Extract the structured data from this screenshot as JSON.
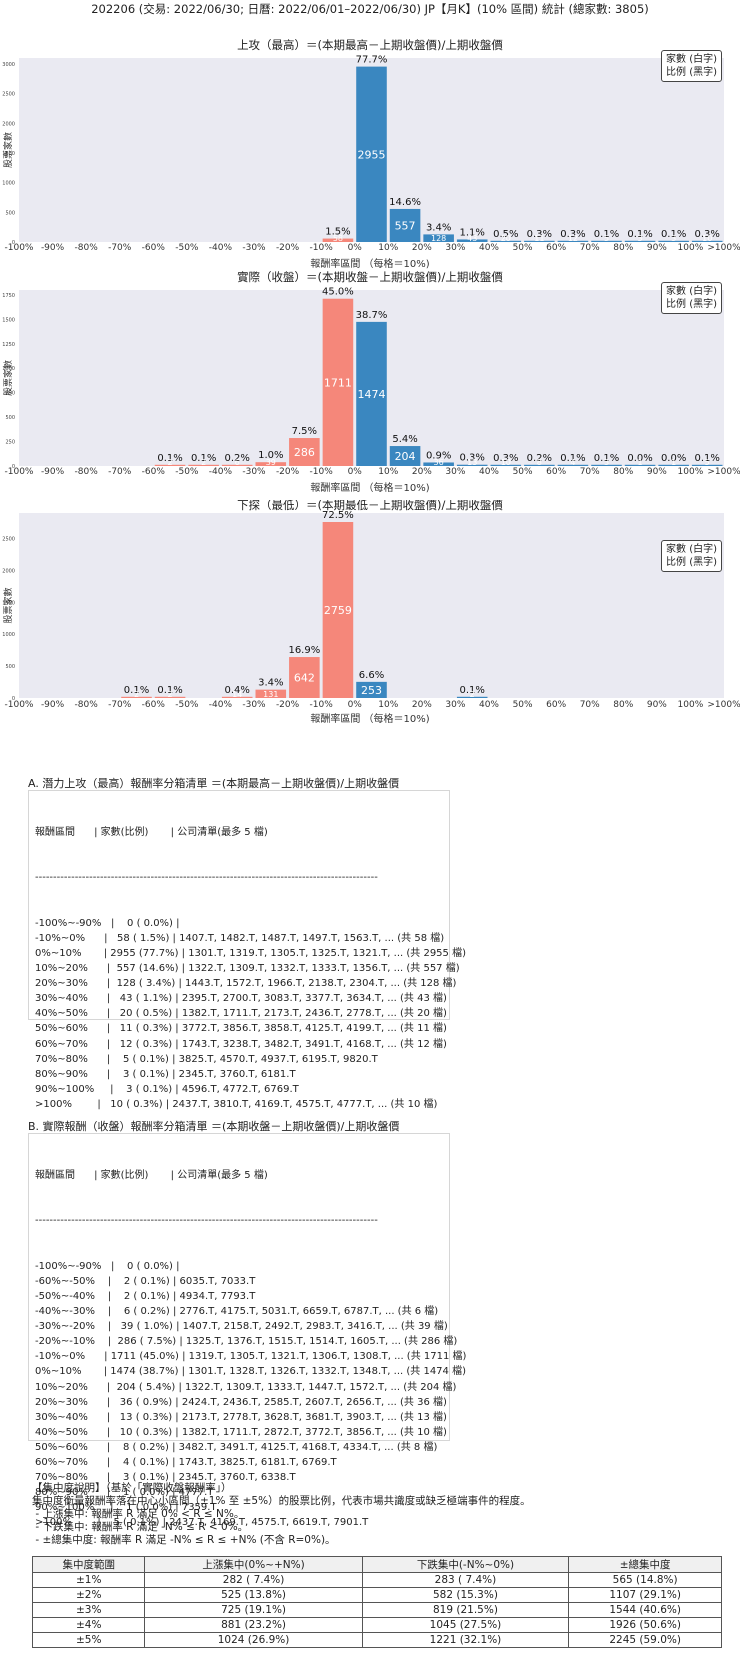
{
  "page_title": "202206 (交易: 2022/06/30; 日曆: 2022/06/01–2022/06/30) JP【月K】(10% 區間) 統計 (總家數: 3805)",
  "legend": {
    "line1": "家數 (白字)",
    "line2": "比例 (黑字)"
  },
  "colors": {
    "positive": "#3a87c0",
    "negative": "#f5877a",
    "panel": "#eaeaf2"
  },
  "chart_data": [
    {
      "type": "bar",
      "title": "上攻（最高）＝(本期最高－上期收盤價)/上期收盤價",
      "xlabel": "報酬率區間 （每格＝10%)",
      "ylabel": "股票家數",
      "x_ticks": [
        "-100%",
        "-90%",
        "-80%",
        "-70%",
        "-60%",
        "-50%",
        "-40%",
        "-30%",
        "-20%",
        "-10%",
        "0%",
        "10%",
        "20%",
        "30%",
        "40%",
        "50%",
        "60%",
        "70%",
        "80%",
        "90%",
        "100%",
        ">100%"
      ],
      "y_ticks": [
        0,
        500,
        1000,
        1500,
        2000,
        2500,
        3000
      ],
      "ylim": [
        0,
        3100
      ],
      "categories": [
        "-100%~-90%",
        "-90%~-80%",
        "-80%~-70%",
        "-70%~-60%",
        "-60%~-50%",
        "-50%~-40%",
        "-40%~-30%",
        "-30%~-20%",
        "-20%~-10%",
        "-10%~0%",
        "0%~10%",
        "10%~20%",
        "20%~30%",
        "30%~40%",
        "40%~50%",
        "50%~60%",
        "60%~70%",
        "70%~80%",
        "80%~90%",
        "90%~100%",
        ">100%"
      ],
      "values": [
        0,
        null,
        null,
        null,
        null,
        null,
        null,
        null,
        null,
        58,
        2955,
        557,
        128,
        43,
        20,
        11,
        12,
        5,
        3,
        3,
        10
      ],
      "pct_labels": [
        "",
        "",
        "",
        "",
        "",
        "",
        "",
        "",
        "",
        "1.5%",
        "77.7%",
        "14.6%",
        "3.4%",
        "1.1%",
        "0.5%",
        "0.3%",
        "0.3%",
        "0.1%",
        "0.1%",
        "0.1%",
        "0.3%"
      ],
      "count_labels": [
        "",
        "",
        "",
        "",
        "",
        "",
        "",
        "",
        "",
        "58",
        "2955",
        "557",
        "128",
        "43",
        "20",
        "11",
        "12",
        "5",
        "3",
        "3",
        "10"
      ]
    },
    {
      "type": "bar",
      "title": "實際（收盤）＝(本期收盤－上期收盤價)/上期收盤價",
      "xlabel": "報酬率區間 （每格＝10%)",
      "ylabel": "股票家數",
      "x_ticks": [
        "-100%",
        "-90%",
        "-80%",
        "-70%",
        "-60%",
        "-50%",
        "-40%",
        "-30%",
        "-20%",
        "-10%",
        "0%",
        "10%",
        "20%",
        "30%",
        "40%",
        "50%",
        "60%",
        "70%",
        "80%",
        "90%",
        "100%",
        ">100%"
      ],
      "y_ticks": [
        0,
        250,
        500,
        750,
        1000,
        1250,
        1500,
        1750
      ],
      "ylim": [
        0,
        1800
      ],
      "categories": [
        "-100%~-90%",
        "-90%~-80%",
        "-80%~-70%",
        "-70%~-60%",
        "-60%~-50%",
        "-50%~-40%",
        "-40%~-30%",
        "-30%~-20%",
        "-20%~-10%",
        "-10%~0%",
        "0%~10%",
        "10%~20%",
        "20%~30%",
        "30%~40%",
        "40%~50%",
        "50%~60%",
        "60%~70%",
        "70%~80%",
        "80%~90%",
        "90%~100%",
        ">100%"
      ],
      "values": [
        0,
        null,
        null,
        null,
        2,
        2,
        6,
        39,
        286,
        1711,
        1474,
        204,
        36,
        13,
        10,
        8,
        4,
        3,
        1,
        1,
        5
      ],
      "pct_labels": [
        "",
        "",
        "",
        "",
        "0.1%",
        "0.1%",
        "0.2%",
        "1.0%",
        "7.5%",
        "45.0%",
        "38.7%",
        "5.4%",
        "0.9%",
        "0.3%",
        "0.3%",
        "0.2%",
        "0.1%",
        "0.1%",
        "0.0%",
        "0.0%",
        "0.1%"
      ],
      "count_labels": [
        "",
        "",
        "",
        "",
        "2",
        "2",
        "6",
        "39",
        "286",
        "1711",
        "1474",
        "204",
        "36",
        "13",
        "10",
        "8",
        "4",
        "3",
        "1",
        "1",
        "5"
      ]
    },
    {
      "type": "bar",
      "title": "下探（最低）＝(本期最低－上期收盤價)/上期收盤價",
      "xlabel": "報酬率區間 （每格＝10%)",
      "ylabel": "股票家數",
      "x_ticks": [
        "-100%",
        "-90%",
        "-80%",
        "-70%",
        "-60%",
        "-50%",
        "-40%",
        "-30%",
        "-20%",
        "-10%",
        "0%",
        "10%",
        "20%",
        "30%",
        "40%",
        "50%",
        "60%",
        "70%",
        "80%",
        "90%",
        "100%",
        ">100%"
      ],
      "y_ticks": [
        0,
        500,
        1000,
        1500,
        2000,
        2500
      ],
      "ylim": [
        0,
        2900
      ],
      "categories": [
        "-100%~-90%",
        "-90%~-80%",
        "-80%~-70%",
        "-70%~-60%",
        "-60%~-50%",
        "-50%~-40%",
        "-40%~-30%",
        "-30%~-20%",
        "-20%~-10%",
        "-10%~0%",
        "0%~10%",
        "10%~20%",
        "20%~30%",
        "30%~40%",
        "40%~50%",
        "50%~60%",
        "60%~70%",
        "70%~80%",
        "80%~90%",
        "90%~100%",
        ">100%"
      ],
      "values": [
        null,
        null,
        null,
        2,
        2,
        null,
        14,
        131,
        642,
        2759,
        253,
        null,
        null,
        2,
        null,
        null,
        null,
        null,
        null,
        null,
        null
      ],
      "pct_labels": [
        "",
        "",
        "",
        "0.1%",
        "0.1%",
        "",
        "0.4%",
        "3.4%",
        "16.9%",
        "72.5%",
        "6.6%",
        "",
        "",
        "0.1%",
        "",
        "",
        "",
        "",
        "",
        "",
        ""
      ],
      "count_labels": [
        "",
        "",
        "",
        "2",
        "2",
        "",
        "14",
        "131",
        "642",
        "2759",
        "253",
        "",
        "",
        "2",
        "",
        "",
        "",
        "",
        "",
        "",
        ""
      ]
    }
  ],
  "section_a": {
    "title": "A. 潛力上攻（最高）報酬率分箱清單 ＝(本期最高－上期收盤價)/上期收盤價",
    "header": "報酬區間      | 家數(比例)       | 公司清單(最多 5 檔)",
    "separator": "-----------------------------------------------------------------------------------------------",
    "rows": [
      "-100%~-90%   |    0 ( 0.0%) |",
      "-10%~0%      |   58 ( 1.5%) | 1407.T, 1482.T, 1487.T, 1497.T, 1563.T, ... (共 58 檔)",
      "0%~10%       | 2955 (77.7%) | 1301.T, 1319.T, 1305.T, 1325.T, 1321.T, ... (共 2955 檔)",
      "10%~20%      |  557 (14.6%) | 1322.T, 1309.T, 1332.T, 1333.T, 1356.T, ... (共 557 檔)",
      "20%~30%      |  128 ( 3.4%) | 1443.T, 1572.T, 1966.T, 2138.T, 2304.T, ... (共 128 檔)",
      "30%~40%      |   43 ( 1.1%) | 2395.T, 2700.T, 3083.T, 3377.T, 3634.T, ... (共 43 檔)",
      "40%~50%      |   20 ( 0.5%) | 1382.T, 1711.T, 2173.T, 2436.T, 2778.T, ... (共 20 檔)",
      "50%~60%      |   11 ( 0.3%) | 3772.T, 3856.T, 3858.T, 4125.T, 4199.T, ... (共 11 檔)",
      "60%~70%      |   12 ( 0.3%) | 1743.T, 3238.T, 3482.T, 3491.T, 4168.T, ... (共 12 檔)",
      "70%~80%      |    5 ( 0.1%) | 3825.T, 4570.T, 4937.T, 6195.T, 9820.T",
      "80%~90%      |    3 ( 0.1%) | 2345.T, 3760.T, 6181.T",
      "90%~100%     |    3 ( 0.1%) | 4596.T, 4772.T, 6769.T",
      ">100%        |   10 ( 0.3%) | 2437.T, 3810.T, 4169.T, 4575.T, 4777.T, ... (共 10 檔)"
    ]
  },
  "section_b": {
    "title": "B. 實際報酬（收盤）報酬率分箱清單 ＝(本期收盤－上期收盤價)/上期收盤價",
    "header": "報酬區間      | 家數(比例)       | 公司清單(最多 5 檔)",
    "separator": "-----------------------------------------------------------------------------------------------",
    "rows": [
      "-100%~-90%   |    0 ( 0.0%) |",
      "-60%~-50%    |    2 ( 0.1%) | 6035.T, 7033.T",
      "-50%~-40%    |    2 ( 0.1%) | 4934.T, 7793.T",
      "-40%~-30%    |    6 ( 0.2%) | 2776.T, 4175.T, 5031.T, 6659.T, 6787.T, ... (共 6 檔)",
      "-30%~-20%    |   39 ( 1.0%) | 1407.T, 2158.T, 2492.T, 2983.T, 3416.T, ... (共 39 檔)",
      "-20%~-10%    |  286 ( 7.5%) | 1325.T, 1376.T, 1515.T, 1514.T, 1605.T, ... (共 286 檔)",
      "-10%~0%      | 1711 (45.0%) | 1319.T, 1305.T, 1321.T, 1306.T, 1308.T, ... (共 1711 檔)",
      "0%~10%       | 1474 (38.7%) | 1301.T, 1328.T, 1326.T, 1332.T, 1348.T, ... (共 1474 檔)",
      "10%~20%      |  204 ( 5.4%) | 1322.T, 1309.T, 1333.T, 1447.T, 1572.T, ... (共 204 檔)",
      "20%~30%      |   36 ( 0.9%) | 2424.T, 2436.T, 2585.T, 2607.T, 2656.T, ... (共 36 檔)",
      "30%~40%      |   13 ( 0.3%) | 2173.T, 2778.T, 3628.T, 3681.T, 3903.T, ... (共 13 檔)",
      "40%~50%      |   10 ( 0.3%) | 1382.T, 1711.T, 2872.T, 3772.T, 3856.T, ... (共 10 檔)",
      "50%~60%      |    8 ( 0.2%) | 3482.T, 3491.T, 4125.T, 4168.T, 4334.T, ... (共 8 檔)",
      "60%~70%      |    4 ( 0.1%) | 1743.T, 3825.T, 6181.T, 6769.T",
      "70%~80%      |    3 ( 0.1%) | 2345.T, 3760.T, 6338.T",
      "80%~90%      |    1 ( 0.0%) | 4777.T",
      "90%~100%     |    1 ( 0.0%) | 7359.T",
      ">100%        |    5 ( 0.1%) | 2437.T, 4169.T, 4575.T, 6619.T, 7901.T"
    ]
  },
  "concentration": {
    "lines": [
      "【集中度說明】（基於「實際收盤報酬率」）",
      "集中度衡量報酬率落在中心小區間（±1% 至 ±5%）的股票比例，代表市場共識度或缺乏極端事件的程度。",
      " - 上漲集中: 報酬率 R 滿足 0% < R ≤ N%。",
      " - 下跌集中: 報酬率 R 滿足 -N% ≤ R < 0%。",
      " - ±總集中度: 報酬率 R 滿足 -N% ≤ R ≤ +N% (不含 R=0%)。"
    ],
    "headers": [
      "集中度範圍",
      "上漲集中(0%~+N%)",
      "下跌集中(-N%~0%)",
      "±總集中度"
    ],
    "rows": [
      [
        "±1%",
        "282 ( 7.4%)",
        "283 ( 7.4%)",
        "565 (14.8%)"
      ],
      [
        "±2%",
        "525 (13.8%)",
        "582 (15.3%)",
        "1107 (29.1%)"
      ],
      [
        "±3%",
        "725 (19.1%)",
        "819 (21.5%)",
        "1544 (40.6%)"
      ],
      [
        "±4%",
        "881 (23.2%)",
        "1045 (27.5%)",
        "1926 (50.6%)"
      ],
      [
        "±5%",
        "1024 (26.9%)",
        "1221 (32.1%)",
        "2245 (59.0%)"
      ]
    ]
  }
}
